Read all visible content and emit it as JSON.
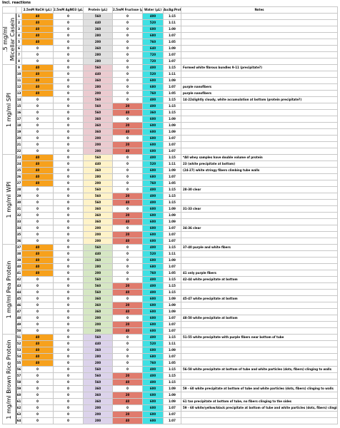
{
  "caption": "Incl. reactions",
  "headers": [
    "",
    "",
    "2.5mM NaCH (µL)",
    "2.5mM AgNO3 (µL)",
    "Protein (µL)",
    "2.5mM Fructose (µL)",
    "Water (µL)",
    "Au/Ag:Protein",
    "Notes"
  ],
  "colors": {
    "naoh_orange": "#f7a11c",
    "micellar_protein": "#e0e0e0",
    "spi_protein": "#ebcbd0",
    "wpi_protein": "#fff3c9",
    "pea_protein": "#d6e7c4",
    "rice_protein": "#dcd3eb",
    "fructose_red": "#e07b6d",
    "water_cyan": "#3fe0e3"
  },
  "groups": [
    {
      "label": ".5 mg/ml\nMicellar Casein",
      "protein_color": "micellar_protein",
      "rows": [
        {
          "n": "1",
          "naoh": "40",
          "agno3": "0",
          "protein": "560",
          "fructose": "0",
          "water": "400",
          "ratio": "1:15",
          "note": ""
        },
        {
          "n": "2",
          "naoh": "40",
          "agno3": "0",
          "protein": "440",
          "fructose": "0",
          "water": "520",
          "ratio": "1:11",
          "note": ""
        },
        {
          "n": "3",
          "naoh": "40",
          "agno3": "0",
          "protein": "360",
          "fructose": "0",
          "water": "600",
          "ratio": "1:09",
          "note": ""
        },
        {
          "n": "4",
          "naoh": "40",
          "agno3": "0",
          "protein": "280",
          "fructose": "0",
          "water": "680",
          "ratio": "1:07",
          "note": ""
        },
        {
          "n": "5",
          "naoh": "40",
          "agno3": "0",
          "protein": "200",
          "fructose": "0",
          "water": "760",
          "ratio": "1:05",
          "note": ""
        },
        {
          "n": "6",
          "naoh": "0",
          "agno3": "0",
          "protein": "360",
          "fructose": "0",
          "water": "640",
          "ratio": "1:09",
          "note": ""
        },
        {
          "n": "7",
          "naoh": "0",
          "agno3": "0",
          "protein": "280",
          "fructose": "0",
          "water": "720",
          "ratio": "1:07",
          "note": ""
        },
        {
          "n": "8",
          "naoh": "0",
          "agno3": "0",
          "protein": "280",
          "fructose": "0",
          "water": "720",
          "ratio": "1:07",
          "note": ""
        }
      ]
    },
    {
      "label": "1 mg/ml SPI",
      "protein_color": "spi_protein",
      "rows": [
        {
          "n": "9",
          "naoh": "40",
          "agno3": "0",
          "protein": "560",
          "fructose": "0",
          "water": "400",
          "ratio": "1:15",
          "note": "Formed white fibrous bundles 9-11 (precipitate?)"
        },
        {
          "n": "10",
          "naoh": "40",
          "agno3": "0",
          "protein": "440",
          "fructose": "0",
          "water": "520",
          "ratio": "1:11",
          "note": ""
        },
        {
          "n": "11",
          "naoh": "40",
          "agno3": "0",
          "protein": "360",
          "fructose": "0",
          "water": "600",
          "ratio": "1:09",
          "note": ""
        },
        {
          "n": "12",
          "naoh": "40",
          "agno3": "0",
          "protein": "280",
          "fructose": "0",
          "water": "680",
          "ratio": "1:07",
          "note": "purple nanofibers"
        },
        {
          "n": "13",
          "naoh": "40",
          "agno3": "0",
          "protein": "200",
          "fructose": "0",
          "water": "760",
          "ratio": "1:05",
          "note": "purple nanofibers"
        },
        {
          "n": "14",
          "naoh": "0",
          "agno3": "0",
          "protein": "560",
          "fructose": "0",
          "water": "400",
          "ratio": "1:15",
          "note": "14-22slightly cloudy, white accumulation at bottom (protein precipitate?)"
        },
        {
          "n": "15",
          "naoh": "0",
          "agno3": "0",
          "protein": "560",
          "fructose": "20",
          "water": "400",
          "ratio": "1:15",
          "note": ""
        },
        {
          "n": "16",
          "naoh": "0",
          "agno3": "0",
          "protein": "560",
          "fructose": "40",
          "water": "360",
          "ratio": "1:15",
          "note": ""
        },
        {
          "n": "17",
          "naoh": "0",
          "agno3": "0",
          "protein": "360",
          "fructose": "0",
          "water": "600",
          "ratio": "1:09",
          "note": ""
        },
        {
          "n": "18",
          "naoh": "0",
          "agno3": "0",
          "protein": "360",
          "fructose": "20",
          "water": "600",
          "ratio": "1:09",
          "note": ""
        },
        {
          "n": "19",
          "naoh": "0",
          "agno3": "0",
          "protein": "360",
          "fructose": "40",
          "water": "600",
          "ratio": "1:09",
          "note": ""
        },
        {
          "n": "20",
          "naoh": "0",
          "agno3": "0",
          "protein": "200",
          "fructose": "0",
          "water": "600",
          "ratio": "1:07",
          "note": ""
        },
        {
          "n": "21",
          "naoh": "0",
          "agno3": "0",
          "protein": "200",
          "fructose": "20",
          "water": "600",
          "ratio": "1:07",
          "note": ""
        },
        {
          "n": "22",
          "naoh": "0",
          "agno3": "0",
          "protein": "200",
          "fructose": "40",
          "water": "600",
          "ratio": "1:07",
          "note": ""
        }
      ]
    },
    {
      "label": "1 mg/ml WPI",
      "protein_color": "wpi_protein",
      "rows": [
        {
          "n": "23",
          "naoh": "40",
          "agno3": "0",
          "protein": "560",
          "fructose": "0",
          "water": "400",
          "ratio": "1:15",
          "note": "*All whey samples have double volume of protein"
        },
        {
          "n": "24",
          "naoh": "40",
          "agno3": "0",
          "protein": "440",
          "fructose": "0",
          "water": "520",
          "ratio": "1:11",
          "note": "23 (white precipitate at bottom)"
        },
        {
          "n": "25",
          "naoh": "40",
          "agno3": "0",
          "protein": "360",
          "fructose": "0",
          "water": "600",
          "ratio": "1:09",
          "note": "(24-27) white stringy fibers climbing tube walls"
        },
        {
          "n": "26",
          "naoh": "40",
          "agno3": "0",
          "protein": "280",
          "fructose": "0",
          "water": "680",
          "ratio": "1:07",
          "note": ""
        },
        {
          "n": "27",
          "naoh": "40",
          "agno3": "0",
          "protein": "200",
          "fructose": "0",
          "water": "760",
          "ratio": "1:05",
          "note": ""
        },
        {
          "n": "28",
          "naoh": "0",
          "agno3": "0",
          "protein": "560",
          "fructose": "0",
          "water": "400",
          "ratio": "1:15",
          "note": "28-30 clear"
        },
        {
          "n": "29",
          "naoh": "0",
          "agno3": "0",
          "protein": "560",
          "fructose": "20",
          "water": "400",
          "ratio": "1:15",
          "note": ""
        },
        {
          "n": "30",
          "naoh": "0",
          "agno3": "0",
          "protein": "560",
          "fructose": "40",
          "water": "400",
          "ratio": "1:15",
          "note": ""
        },
        {
          "n": "31",
          "naoh": "0",
          "agno3": "0",
          "protein": "360",
          "fructose": "0",
          "water": "600",
          "ratio": "1:09",
          "note": "31-33 clear"
        },
        {
          "n": "32",
          "naoh": "0",
          "agno3": "0",
          "protein": "360",
          "fructose": "20",
          "water": "600",
          "ratio": "1:09",
          "note": ""
        },
        {
          "n": "33",
          "naoh": "0",
          "agno3": "0",
          "protein": "360",
          "fructose": "40",
          "water": "600",
          "ratio": "1:09",
          "note": ""
        },
        {
          "n": "34",
          "naoh": "0",
          "agno3": "0",
          "protein": "200",
          "fructose": "0",
          "water": "600",
          "ratio": "1:07",
          "note": "34-36 clear"
        },
        {
          "n": "35",
          "naoh": "0",
          "agno3": "0",
          "protein": "200",
          "fructose": "20",
          "water": "600",
          "ratio": "1:07",
          "note": ""
        },
        {
          "n": "36",
          "naoh": "0",
          "agno3": "0",
          "protein": "200",
          "fructose": "40",
          "water": "600",
          "ratio": "1:07",
          "note": ""
        }
      ]
    },
    {
      "label": "1 mg/ml Pea Protein",
      "protein_color": "pea_protein",
      "rows": [
        {
          "n": "37",
          "naoh": "40",
          "agno3": "0",
          "protein": "560",
          "fructose": "0",
          "water": "400",
          "ratio": "1:15",
          "note": "37-40 purple and white fibers"
        },
        {
          "n": "38",
          "naoh": "40",
          "agno3": "0",
          "protein": "440",
          "fructose": "0",
          "water": "520",
          "ratio": "1:11",
          "note": ""
        },
        {
          "n": "39",
          "naoh": "40",
          "agno3": "0",
          "protein": "360",
          "fructose": "0",
          "water": "600",
          "ratio": "1:09",
          "note": ""
        },
        {
          "n": "40",
          "naoh": "40",
          "agno3": "0",
          "protein": "280",
          "fructose": "0",
          "water": "680",
          "ratio": "1:07",
          "note": ""
        },
        {
          "n": "41",
          "naoh": "40",
          "agno3": "0",
          "protein": "200",
          "fructose": "0",
          "water": "760",
          "ratio": "1:05",
          "note": "41 only purple fibers"
        },
        {
          "n": "42",
          "naoh": "0",
          "agno3": "0",
          "protein": "560",
          "fructose": "0",
          "water": "400",
          "ratio": "1:15",
          "note": "42-44 white precipitate at bottom"
        },
        {
          "n": "43",
          "naoh": "0",
          "agno3": "0",
          "protein": "560",
          "fructose": "20",
          "water": "400",
          "ratio": "1:15",
          "note": ""
        },
        {
          "n": "44",
          "naoh": "0",
          "agno3": "0",
          "protein": "560",
          "fructose": "40",
          "water": "400",
          "ratio": "1:15",
          "note": ""
        },
        {
          "n": "45",
          "naoh": "0",
          "agno3": "0",
          "protein": "360",
          "fructose": "0",
          "water": "600",
          "ratio": "1:09",
          "note": "45-47 white precipitate at bottom"
        },
        {
          "n": "46",
          "naoh": "0",
          "agno3": "0",
          "protein": "360",
          "fructose": "20",
          "water": "600",
          "ratio": "1:09",
          "note": ""
        },
        {
          "n": "47",
          "naoh": "0",
          "agno3": "0",
          "protein": "360",
          "fructose": "40",
          "water": "600",
          "ratio": "1:09",
          "note": ""
        },
        {
          "n": "48",
          "naoh": "0",
          "agno3": "0",
          "protein": "200",
          "fructose": "0",
          "water": "600",
          "ratio": "1:07",
          "note": "48-50 white precipitate at bottom"
        },
        {
          "n": "49",
          "naoh": "0",
          "agno3": "0",
          "protein": "200",
          "fructose": "20",
          "water": "600",
          "ratio": "1:07",
          "note": ""
        },
        {
          "n": "50",
          "naoh": "0",
          "agno3": "0",
          "protein": "200",
          "fructose": "40",
          "water": "600",
          "ratio": "1:07",
          "note": ""
        }
      ]
    },
    {
      "label": "1 mg/ml Brown Rice Protein",
      "protein_color": "rice_protein",
      "rows": [
        {
          "n": "51",
          "naoh": "40",
          "agno3": "0",
          "protein": "560",
          "fructose": "0",
          "water": "400",
          "ratio": "1:15",
          "note": "51-55 white precipitate with purple fibers near bottom of tube"
        },
        {
          "n": "52",
          "naoh": "40",
          "agno3": "0",
          "protein": "440",
          "fructose": "0",
          "water": "520",
          "ratio": "1:11",
          "note": ""
        },
        {
          "n": "53",
          "naoh": "40",
          "agno3": "0",
          "protein": "360",
          "fructose": "0",
          "water": "600",
          "ratio": "1:09",
          "note": ""
        },
        {
          "n": "54",
          "naoh": "40",
          "agno3": "0",
          "protein": "280",
          "fructose": "0",
          "water": "680",
          "ratio": "1:07",
          "note": ""
        },
        {
          "n": "55",
          "naoh": "40",
          "agno3": "0",
          "protein": "200",
          "fructose": "0",
          "water": "760",
          "ratio": "1:05",
          "note": ""
        },
        {
          "n": "56",
          "naoh": "0",
          "agno3": "0",
          "protein": "560",
          "fructose": "0",
          "water": "400",
          "ratio": "1:15",
          "note": "56-58 white precipitate at bottom of tube and white particles (dots, fibers) clinging to walls"
        },
        {
          "n": "57",
          "naoh": "0",
          "agno3": "0",
          "protein": "560",
          "fructose": "20",
          "water": "400",
          "ratio": "1:15",
          "note": ""
        },
        {
          "n": "58",
          "naoh": "0",
          "agno3": "0",
          "protein": "560",
          "fructose": "40",
          "water": "400",
          "ratio": "1:15",
          "note": ""
        },
        {
          "n": "59",
          "naoh": "0",
          "agno3": "0",
          "protein": "360",
          "fructose": "0",
          "water": "600",
          "ratio": "1:09",
          "note": "59 - 60 white precipitate at bottom of tube and white particles (dots, fibers) clinging to walls"
        },
        {
          "n": "60",
          "naoh": "0",
          "agno3": "0",
          "protein": "360",
          "fructose": "20",
          "water": "600",
          "ratio": "1:09",
          "note": ""
        },
        {
          "n": "61",
          "naoh": "0",
          "agno3": "0",
          "protein": "360",
          "fructose": "40",
          "water": "600",
          "ratio": "1:09",
          "note": "61 tan precipitate at bottom of tube, no fibers clinging to the sides"
        },
        {
          "n": "62",
          "naoh": "0",
          "agno3": "0",
          "protein": "200",
          "fructose": "0",
          "water": "600",
          "ratio": "1:07",
          "note": "59 - 60 white/yellow/black precipitate at bottom of tube and white particles (dots, fibers) clinging to walls"
        },
        {
          "n": "63",
          "naoh": "0",
          "agno3": "0",
          "protein": "200",
          "fructose": "20",
          "water": "600",
          "ratio": "1:07",
          "note": ""
        },
        {
          "n": "64",
          "naoh": "0",
          "agno3": "0",
          "protein": "200",
          "fructose": "40",
          "water": "600",
          "ratio": "1:07",
          "note": ""
        }
      ]
    }
  ]
}
